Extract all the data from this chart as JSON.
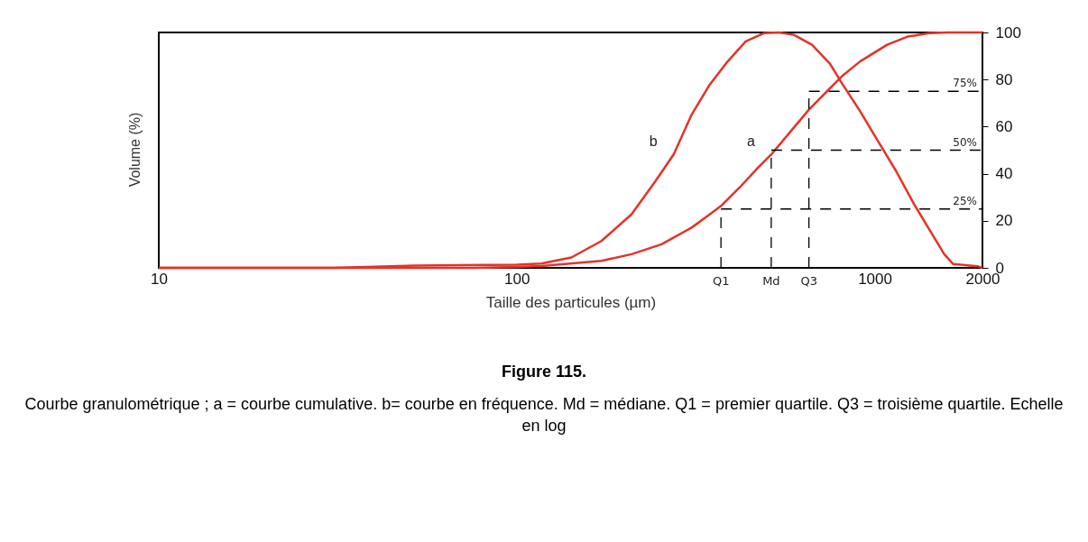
{
  "chart_data": {
    "type": "line",
    "title": "Figure 115.",
    "xlabel": "Taille des particules (µm)",
    "ylabel": "Volume (%)",
    "log": "x",
    "xlim": [
      10,
      2000
    ],
    "xticks": [
      10,
      100,
      1000,
      2000
    ],
    "ylim": [
      0,
      100
    ],
    "yticks": [
      0,
      20,
      40,
      60,
      80,
      100
    ],
    "grid": false,
    "marker": "none",
    "line_style": "solid",
    "series": [
      {
        "name": "a",
        "color": "#e53228",
        "x": [
          10,
          75,
          100,
          117.1,
          172.4,
          209.2,
          253.9,
          308.1,
          345.9,
          372.3,
          419.8,
          471.5,
          514.3,
          583.3,
          655,
          735.6,
          810,
          910.5,
          1083,
          1240,
          1420,
          1594,
          1935,
          2000
        ],
        "values": [
          0,
          0,
          0.4,
          0.8,
          3,
          5.8,
          10,
          17.1,
          22.7,
          26.3,
          34.2,
          42.5,
          48.2,
          58.1,
          67.2,
          75,
          81.4,
          87.7,
          94.8,
          98.3,
          99.7,
          100,
          100,
          100
        ]
      },
      {
        "name": "b",
        "color": "#e53228",
        "x": [
          10,
          30.8,
          52,
          100,
          117.1,
          142.1,
          172.4,
          209.2,
          244.2,
          274.4,
          308.1,
          345.9,
          388.5,
          436.3,
          489.9,
          539.8,
          594.6,
          667.8,
          749.9,
          810,
          910.5,
          1022,
          1148,
          1289,
          1447,
          1564,
          1658,
          1935,
          2000
        ],
        "values": [
          0,
          0,
          1,
          1.3,
          1.8,
          4.4,
          11.4,
          22.7,
          36.9,
          48.2,
          65.1,
          77.8,
          87.7,
          96.2,
          99.7,
          100,
          99,
          94.8,
          86.7,
          78.4,
          66.5,
          53.8,
          41.1,
          27,
          14.3,
          5.8,
          1.6,
          0.7,
          0
        ]
      }
    ],
    "ref_lines": [
      {
        "axis": "x",
        "value": 372,
        "label": "Q1",
        "line_style": "dashed",
        "color": "#000000"
      },
      {
        "axis": "x",
        "value": 514,
        "label": "Md",
        "line_style": "dashed",
        "color": "#000000"
      },
      {
        "axis": "x",
        "value": 655,
        "label": "Q3",
        "line_style": "dashed",
        "color": "#000000"
      },
      {
        "axis": "y",
        "value": 25,
        "label": "25%",
        "line_style": "dashed",
        "color": "#000000"
      },
      {
        "axis": "y",
        "value": 50,
        "label": "50%",
        "line_style": "dashed",
        "color": "#000000"
      },
      {
        "axis": "y",
        "value": 75,
        "label": "75%",
        "line_style": "dashed",
        "color": "#000000"
      }
    ],
    "annotations": [
      "Courbe granulométrique ; a = courbe cumulative. b= courbe en fréquence.  Md = médiane. Q1 = premier quartile. Q3 =  troisième quartile.  Echelle en log"
    ]
  }
}
